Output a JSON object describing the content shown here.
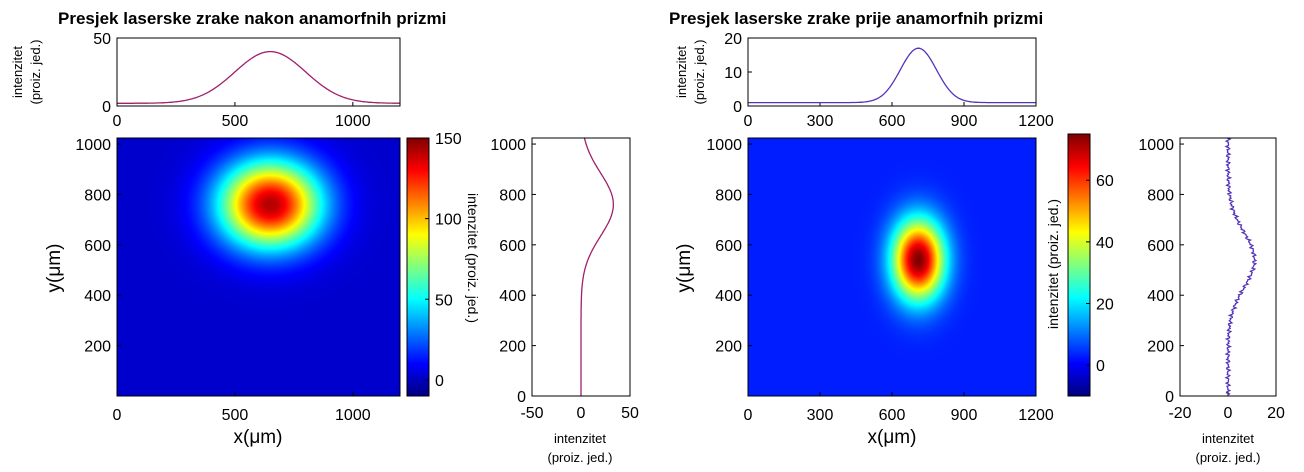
{
  "chart_data": [
    {
      "panel": "left",
      "title": "Presjek laserske zrake nakon anamorfnih prizmi",
      "colormap": "jet",
      "top_profile": {
        "type": "line",
        "ylabel": [
          "intenzitet",
          "(proiz. jed.)"
        ],
        "xlim": [
          0,
          1200
        ],
        "ylim": [
          0,
          50
        ],
        "xticks": [
          0,
          500,
          1000
        ],
        "yticks": [
          0,
          50
        ],
        "x_ticklabels": [
          "0",
          "500",
          "1000"
        ],
        "y_ticklabels": [
          "0",
          "50"
        ],
        "series": [
          {
            "color": "#a0206a",
            "gauss": {
              "amp": 38,
              "center": 650,
              "sigma": 150,
              "base": 2
            }
          }
        ]
      },
      "image": {
        "type": "heatmap",
        "xlabel": "x(μm)",
        "ylabel": "y(μm)",
        "xlim": [
          0,
          1200
        ],
        "ylim": [
          0,
          1024
        ],
        "xticks": [
          0,
          500,
          1000
        ],
        "yticks": [
          200,
          400,
          600,
          800,
          1000
        ],
        "x_ticklabels": [
          "0",
          "500",
          "1000"
        ],
        "y_ticklabels": [
          "200",
          "400",
          "600",
          "800",
          "1000"
        ],
        "beam": {
          "cx": 650,
          "cy": 760,
          "sx": 150,
          "sy": 120,
          "peak": 140
        },
        "background": 2
      },
      "colorbar": {
        "label": "intenzitet (proiz. jed.)",
        "range": [
          -10,
          150
        ],
        "ticks": [
          0,
          50,
          100,
          150
        ],
        "ticklabels": [
          "0",
          "50",
          "100",
          "150"
        ]
      },
      "side_profile": {
        "type": "line",
        "xlabel": [
          "intenzitet",
          "(proiz. jed.)"
        ],
        "xlim": [
          -50,
          50
        ],
        "ylim": [
          0,
          1024
        ],
        "xticks": [
          -50,
          0,
          50
        ],
        "yticks": [
          0,
          200,
          400,
          600,
          800,
          1000
        ],
        "x_ticklabels": [
          "-50",
          "0",
          "50"
        ],
        "y_ticklabels": [
          "0",
          "200",
          "400",
          "600",
          "800",
          "1000"
        ],
        "series": [
          {
            "color": "#a0206a",
            "gauss": {
              "amp": 33,
              "center": 760,
              "sigma": 125,
              "base": 0
            }
          }
        ]
      }
    },
    {
      "panel": "right",
      "title": "Presjek laserske zrake prije anamorfnih prizmi",
      "colormap": "jet",
      "top_profile": {
        "type": "line",
        "ylabel": [
          "intenzitet",
          "(proiz. jed.)"
        ],
        "xlim": [
          0,
          1200
        ],
        "ylim": [
          0,
          20
        ],
        "xticks": [
          0,
          300,
          600,
          900,
          1200
        ],
        "yticks": [
          0,
          10,
          20
        ],
        "x_ticklabels": [
          "0",
          "300",
          "600",
          "900",
          "1200"
        ],
        "y_ticklabels": [
          "0",
          "10",
          "20"
        ],
        "series": [
          {
            "color": "#5533bb",
            "gauss": {
              "amp": 16,
              "center": 710,
              "sigma": 75,
              "base": 1
            }
          }
        ]
      },
      "image": {
        "type": "heatmap",
        "xlabel": "x(μm)",
        "ylabel": "y(μm)",
        "xlim": [
          0,
          1200
        ],
        "ylim": [
          0,
          1024
        ],
        "xticks": [
          0,
          300,
          600,
          900,
          1200
        ],
        "yticks": [
          200,
          400,
          600,
          800,
          1000
        ],
        "x_ticklabels": [
          "0",
          "300",
          "600",
          "900",
          "1200"
        ],
        "y_ticklabels": [
          "200",
          "400",
          "600",
          "800",
          "1000"
        ],
        "beam": {
          "cx": 710,
          "cy": 540,
          "sx": 75,
          "sy": 110,
          "peak": 72
        },
        "background": 3
      },
      "colorbar": {
        "label": "intenzitet (proiz. jed.)",
        "range": [
          -10,
          75
        ],
        "ticks": [
          0,
          20,
          40,
          60
        ],
        "ticklabels": [
          "0",
          "20",
          "40",
          "60"
        ]
      },
      "side_profile": {
        "type": "line",
        "xlabel": [
          "intenzitet",
          "(proiz. jed.)"
        ],
        "xlim": [
          -20,
          20
        ],
        "ylim": [
          0,
          1024
        ],
        "xticks": [
          -20,
          0,
          20
        ],
        "yticks": [
          0,
          200,
          400,
          600,
          800,
          1000
        ],
        "x_ticklabels": [
          "-20",
          "0",
          "20"
        ],
        "y_ticklabels": [
          "0",
          "200",
          "400",
          "600",
          "800",
          "1000"
        ],
        "series": [
          {
            "color": "#5533bb",
            "gauss": {
              "amp": 11,
              "center": 540,
              "sigma": 110,
              "base": 0
            }
          }
        ]
      }
    }
  ]
}
